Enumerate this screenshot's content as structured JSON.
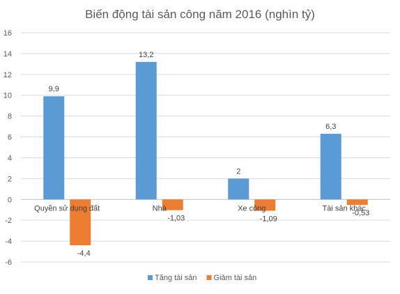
{
  "chart_data": {
    "type": "bar",
    "title": "Biến động tài sản công năm 2016 (nghìn tỷ)",
    "categories": [
      "Quyền sử dụng đất",
      "Nhà",
      "Xe công",
      "Tài sản khác"
    ],
    "series": [
      {
        "name": "Tăng tài sản",
        "color": "#5b9bd5",
        "values": [
          9.9,
          13.2,
          2,
          6.3
        ],
        "labels": [
          "9,9",
          "13,2",
          "2",
          "6,3"
        ]
      },
      {
        "name": "Giảm tài sản",
        "color": "#ed7d31",
        "values": [
          -4.4,
          -1.03,
          -1.09,
          -0.53
        ],
        "labels": [
          "-4,4",
          "-1,03",
          "-1,09",
          "-0,53"
        ]
      }
    ],
    "ylim": [
      -6,
      16
    ],
    "yticks": [
      -6,
      -4,
      -2,
      0,
      2,
      4,
      6,
      8,
      10,
      12,
      14,
      16
    ],
    "grid": true,
    "legend_position": "bottom"
  }
}
